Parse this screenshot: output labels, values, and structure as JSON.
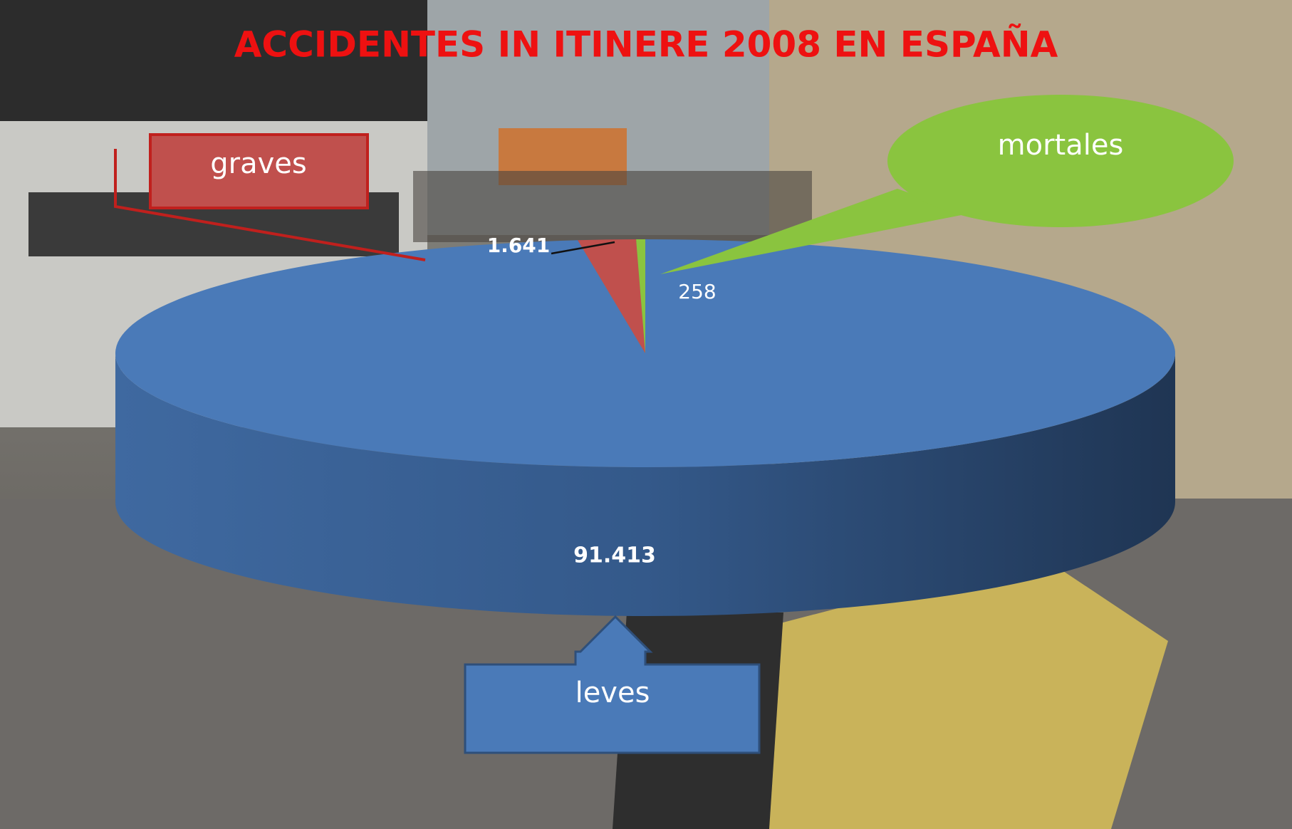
{
  "chart_data": {
    "type": "pie3d",
    "title": "ACCIDENTES IN ITINERE 2008 EN ESPAÑA",
    "categories": [
      "leves",
      "graves",
      "mortales"
    ],
    "values": [
      91413,
      1641,
      258
    ],
    "value_labels": [
      "91.413",
      "1.641",
      "258"
    ],
    "colors": [
      "#4a7ab8",
      "#c0504d",
      "#8ac43f"
    ]
  }
}
